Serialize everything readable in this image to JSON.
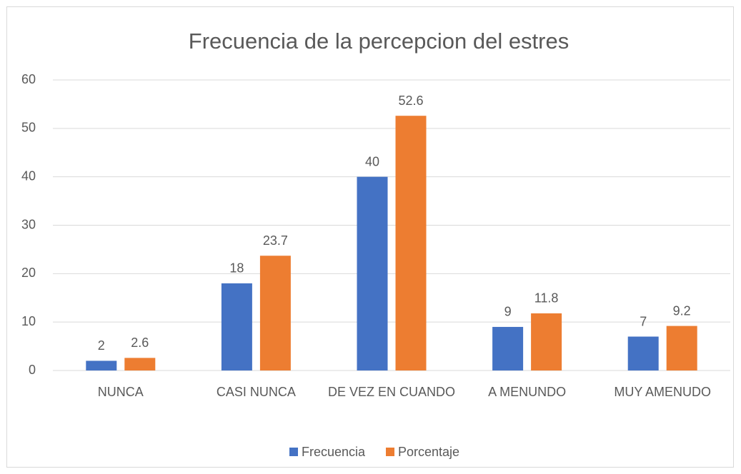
{
  "chart_data": {
    "type": "bar",
    "title": "Frecuencia de la percepcion del estres",
    "categories": [
      "NUNCA",
      "CASI NUNCA",
      "DE VEZ EN CUANDO",
      "A MENUNDO",
      "MUY AMENUDO"
    ],
    "series": [
      {
        "name": "Frecuencia",
        "color": "#4472c4",
        "values": [
          2,
          18,
          40,
          9,
          7
        ]
      },
      {
        "name": "Porcentaje",
        "color": "#ed7d31",
        "values": [
          2.6,
          23.7,
          52.6,
          11.8,
          9.2
        ]
      }
    ],
    "ylim": [
      0,
      60
    ],
    "yticks": [
      0,
      10,
      20,
      30,
      40,
      50,
      60
    ],
    "grid": true,
    "legend": "bottom"
  }
}
